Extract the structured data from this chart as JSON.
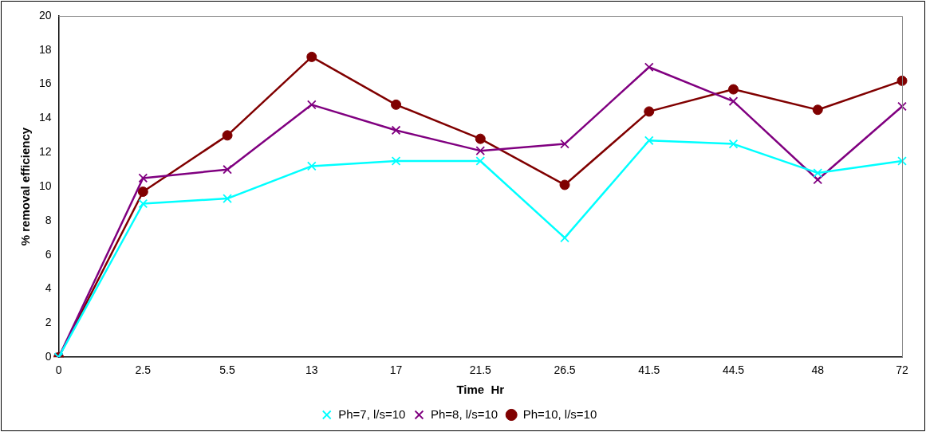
{
  "chart_data": {
    "type": "line",
    "xlabel": "Time  Hr",
    "ylabel": "% removal efficiency",
    "categories": [
      "0",
      "2.5",
      "5.5",
      "13",
      "17",
      "21.5",
      "26.5",
      "41.5",
      "44.5",
      "48",
      "72"
    ],
    "series": [
      {
        "name": "Ph=7, l/s=10",
        "color": "#00ffff",
        "marker": "cross",
        "values": [
          0,
          9.0,
          9.3,
          11.2,
          11.5,
          11.5,
          7.0,
          12.7,
          12.5,
          10.8,
          11.5
        ]
      },
      {
        "name": "Ph=8, l/s=10",
        "color": "#800080",
        "marker": "cross",
        "values": [
          0,
          10.5,
          11.0,
          14.8,
          13.3,
          12.1,
          12.5,
          17.0,
          15.0,
          10.4,
          14.7
        ]
      },
      {
        "name": "Ph=10, l/s=10",
        "color": "#800000",
        "marker": "circle",
        "values": [
          0,
          9.7,
          13.0,
          17.6,
          14.8,
          12.8,
          10.1,
          14.4,
          15.7,
          14.5,
          16.2
        ]
      }
    ],
    "ylim": [
      0,
      20
    ],
    "yticks": [
      0,
      2,
      4,
      6,
      8,
      10,
      12,
      14,
      16,
      18,
      20
    ],
    "grid": false,
    "legend": "bottom",
    "line_style": "solid"
  }
}
